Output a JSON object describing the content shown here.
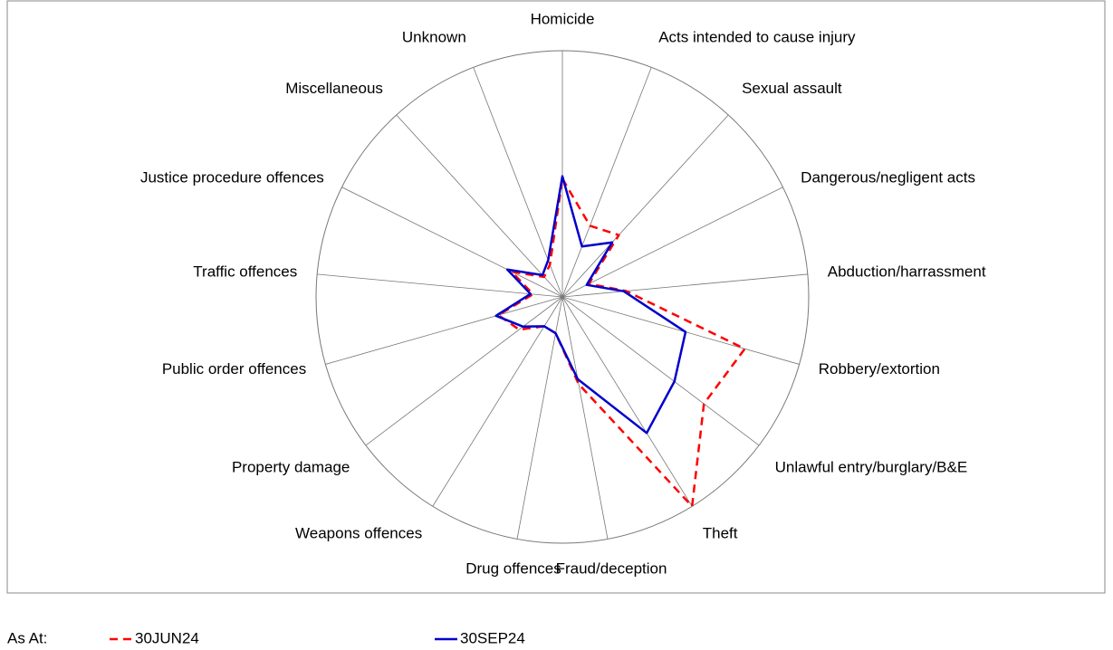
{
  "chart_data": {
    "type": "radar",
    "categories": [
      "Homicide",
      "Acts intended to cause injury",
      "Sexual assault",
      "Dangerous/negligent acts",
      "Abduction/harrassment",
      "Robbery/extortion",
      "Unlawful entry/burglary/B&E",
      "Theft",
      "Fraud/deception",
      "Drug offences",
      "Weapons offences",
      "Property damage",
      "Public order offences",
      "Traffic offences",
      "Justice procedure offences",
      "Miscellaneous",
      "Unknown"
    ],
    "ylim": [
      0,
      100
    ],
    "legend_title": "As At:",
    "series": [
      {
        "name": "30JUN24",
        "color": "#ff0000",
        "dashed": true,
        "values": [
          48,
          31,
          34,
          12,
          26,
          77,
          72,
          100,
          36,
          15,
          14,
          22,
          27,
          12,
          23,
          11,
          14
        ]
      },
      {
        "name": "30SEP24",
        "color": "#0000cc",
        "dashed": false,
        "values": [
          49,
          22,
          30,
          11,
          25,
          52,
          57,
          65,
          34,
          15,
          14,
          20,
          28,
          13,
          25,
          12,
          16
        ]
      }
    ]
  }
}
